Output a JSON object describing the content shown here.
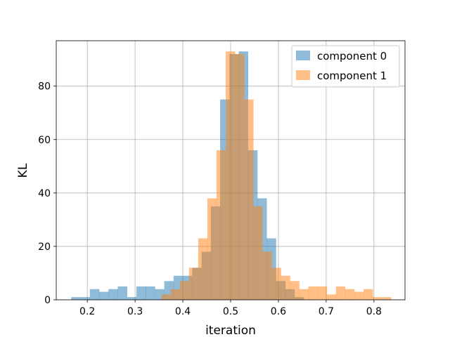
{
  "chart_data": {
    "type": "bar",
    "title": "",
    "xlabel": "iteration",
    "ylabel": "KL",
    "xlim": [
      0.135,
      0.865
    ],
    "ylim": [
      0,
      97
    ],
    "xticks": [
      0.2,
      0.3,
      0.4,
      0.5,
      0.6,
      0.7,
      0.8
    ],
    "yticks": [
      0,
      20,
      40,
      60,
      80
    ],
    "grid": true,
    "legend_position": "top-right",
    "series": [
      {
        "name": "component 0",
        "color": "#1f77b4",
        "opacity": 0.5,
        "bin_width": 0.01948,
        "bins_start": [
          0.1663,
          0.1858,
          0.2053,
          0.2247,
          0.2442,
          0.2637,
          0.2832,
          0.3027,
          0.3221,
          0.3416,
          0.3611,
          0.3806,
          0.4001,
          0.4195,
          0.439,
          0.4585,
          0.478,
          0.4975,
          0.5169,
          0.5364,
          0.5559,
          0.5754,
          0.5949,
          0.6143,
          0.6338
        ],
        "values": [
          1,
          1,
          4,
          3,
          4,
          5,
          1,
          5,
          5,
          4,
          7,
          9,
          9,
          12,
          18,
          35,
          75,
          92,
          93,
          56,
          38,
          23,
          7,
          4,
          1
        ]
      },
      {
        "name": "component 1",
        "color": "#ff7f0e",
        "opacity": 0.5,
        "bin_width": 0.01922,
        "bins_start": [
          0.3553,
          0.3745,
          0.3937,
          0.413,
          0.4322,
          0.4514,
          0.4706,
          0.4898,
          0.5091,
          0.5283,
          0.5475,
          0.5667,
          0.586,
          0.6052,
          0.6244,
          0.6436,
          0.6628,
          0.6821,
          0.7013,
          0.7205,
          0.7397,
          0.759,
          0.7782,
          0.7974,
          0.8166
        ],
        "values": [
          2,
          4,
          7,
          12,
          23,
          38,
          56,
          93,
          92,
          75,
          35,
          18,
          12,
          9,
          7,
          4,
          5,
          5,
          2,
          5,
          4,
          3,
          4,
          1,
          1
        ]
      }
    ]
  }
}
